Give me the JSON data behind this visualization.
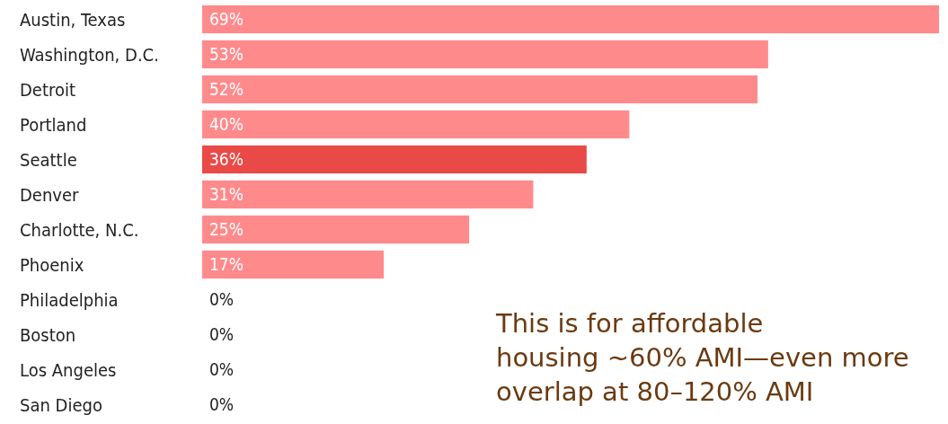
{
  "chart_data": {
    "type": "bar",
    "orientation": "horizontal",
    "categories": [
      "Austin, Texas",
      "Washington, D.C.",
      "Detroit",
      "Portland",
      "Seattle",
      "Denver",
      "Charlotte, N.C.",
      "Phoenix",
      "Philadelphia",
      "Boston",
      "Los Angeles",
      "San Diego"
    ],
    "values": [
      69,
      53,
      52,
      40,
      36,
      31,
      25,
      17,
      0,
      0,
      0,
      0
    ],
    "colors": [
      "#ff8a8c",
      "#ff8a8c",
      "#ff8a8c",
      "#ff8a8c",
      "#e94a48",
      "#ff8a8c",
      "#ff8a8c",
      "#ff8a8c",
      "#ff8a8c",
      "#ff8a8c",
      "#ff8a8c",
      "#ff8a8c"
    ],
    "value_labels": [
      "69%",
      "53%",
      "52%",
      "40%",
      "36%",
      "31%",
      "25%",
      "17%",
      "0%",
      "0%",
      "0%",
      "0%"
    ],
    "annotations": [
      "This is for affordable housing ~60% AMI—even more overlap at 80–120% AMI"
    ]
  }
}
